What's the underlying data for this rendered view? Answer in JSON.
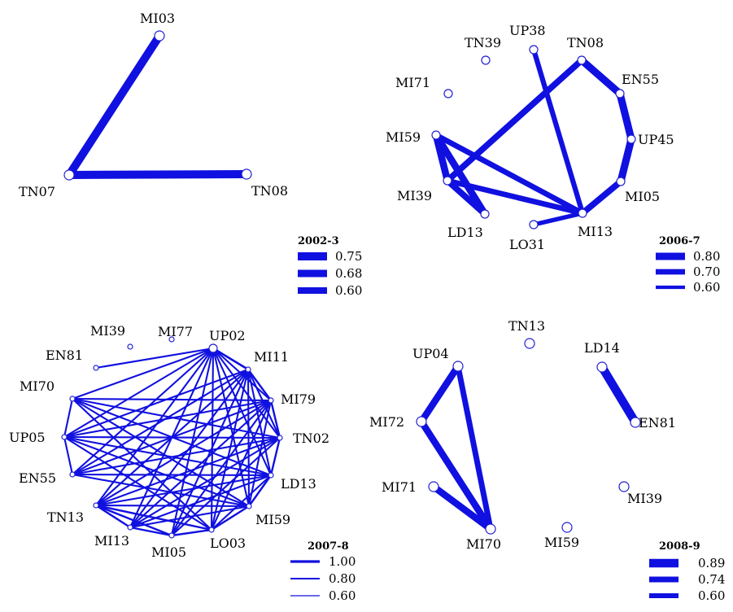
{
  "colors": {
    "edge": "#1010e0",
    "node_stroke": "#2020d0",
    "text": "#000000"
  },
  "panels": [
    {
      "title": "2002-3",
      "legend": [
        {
          "label": "0.75",
          "weight": 0.75
        },
        {
          "label": "0.68",
          "weight": 0.68
        },
        {
          "label": "0.60",
          "weight": 0.6
        }
      ],
      "nodes": [
        {
          "id": "MI03",
          "label": "MI03"
        },
        {
          "id": "TN07",
          "label": "TN07"
        },
        {
          "id": "TN08",
          "label": "TN08"
        }
      ],
      "edges": [
        {
          "source": "MI03",
          "target": "TN07",
          "weight": 0.75
        },
        {
          "source": "TN07",
          "target": "TN08",
          "weight": 0.75
        }
      ]
    },
    {
      "title": "2006-7",
      "legend": [
        {
          "label": "0.80",
          "weight": 0.8
        },
        {
          "label": "0.70",
          "weight": 0.7
        },
        {
          "label": "0.60",
          "weight": 0.6
        }
      ],
      "nodes": [
        {
          "id": "TN39",
          "label": "TN39"
        },
        {
          "id": "UP38",
          "label": "UP38"
        },
        {
          "id": "TN08",
          "label": "TN08"
        },
        {
          "id": "MI71",
          "label": "MI71"
        },
        {
          "id": "EN55",
          "label": "EN55"
        },
        {
          "id": "MI59",
          "label": "MI59"
        },
        {
          "id": "UP45",
          "label": "UP45"
        },
        {
          "id": "MI39",
          "label": "MI39"
        },
        {
          "id": "MI05",
          "label": "MI05"
        },
        {
          "id": "LD13",
          "label": "LD13"
        },
        {
          "id": "LO31",
          "label": "LO31"
        },
        {
          "id": "MI13",
          "label": "MI13"
        }
      ],
      "edges": [
        {
          "source": "TN08",
          "target": "EN55",
          "weight": 0.8
        },
        {
          "source": "EN55",
          "target": "UP45",
          "weight": 0.8
        },
        {
          "source": "UP45",
          "target": "MI05",
          "weight": 0.8
        },
        {
          "source": "MI05",
          "target": "MI13",
          "weight": 0.74
        },
        {
          "source": "UP38",
          "target": "MI13",
          "weight": 0.68
        },
        {
          "source": "TN08",
          "target": "MI39",
          "weight": 0.74
        },
        {
          "source": "MI59",
          "target": "MI39",
          "weight": 0.78
        },
        {
          "source": "MI59",
          "target": "LD13",
          "weight": 0.78
        },
        {
          "source": "MI39",
          "target": "LD13",
          "weight": 0.74
        },
        {
          "source": "MI59",
          "target": "MI13",
          "weight": 0.7
        },
        {
          "source": "MI39",
          "target": "MI13",
          "weight": 0.7
        },
        {
          "source": "LO31",
          "target": "MI13",
          "weight": 0.64
        }
      ]
    },
    {
      "title": "2007-8",
      "legend": [
        {
          "label": "1.00",
          "weight": 1.0
        },
        {
          "label": "0.80",
          "weight": 0.8
        },
        {
          "label": "0.60",
          "weight": 0.6
        }
      ],
      "nodes": [
        {
          "id": "MI39",
          "label": "MI39"
        },
        {
          "id": "MI77",
          "label": "MI77"
        },
        {
          "id": "UP02",
          "label": "UP02"
        },
        {
          "id": "EN81",
          "label": "EN81"
        },
        {
          "id": "MI11",
          "label": "MI11"
        },
        {
          "id": "MI70",
          "label": "MI70"
        },
        {
          "id": "MI79",
          "label": "MI79"
        },
        {
          "id": "UP05",
          "label": "UP05"
        },
        {
          "id": "TN02",
          "label": "TN02"
        },
        {
          "id": "EN55",
          "label": "EN55"
        },
        {
          "id": "LD13",
          "label": "LD13"
        },
        {
          "id": "TN13",
          "label": "TN13"
        },
        {
          "id": "MI59",
          "label": "MI59"
        },
        {
          "id": "MI13",
          "label": "MI13"
        },
        {
          "id": "LO03",
          "label": "LO03"
        },
        {
          "id": "MI05",
          "label": "MI05"
        }
      ],
      "edges": [
        {
          "source": "MI70",
          "target": "UP05",
          "weight": 0.8
        },
        {
          "source": "UP05",
          "target": "EN55",
          "weight": 0.8
        },
        {
          "source": "UP02",
          "target": "MI11",
          "weight": 0.9
        },
        {
          "source": "MI11",
          "target": "MI79",
          "weight": 0.85
        },
        {
          "source": "MI79",
          "target": "TN02",
          "weight": 0.85
        },
        {
          "source": "TN02",
          "target": "LD13",
          "weight": 0.85
        },
        {
          "source": "LD13",
          "target": "MI59",
          "weight": 0.85
        },
        {
          "source": "MI59",
          "target": "LO03",
          "weight": 0.85
        },
        {
          "source": "LO03",
          "target": "MI05",
          "weight": 0.85
        },
        {
          "source": "MI05",
          "target": "MI13",
          "weight": 0.85
        },
        {
          "source": "MI13",
          "target": "TN13",
          "weight": 0.85
        },
        {
          "source": "TN13",
          "target": "MI05",
          "weight": 0.85
        },
        {
          "source": "TN13",
          "target": "LO03",
          "weight": 0.85
        },
        {
          "source": "TN13",
          "target": "MI59",
          "weight": 0.8
        },
        {
          "source": "MI13",
          "target": "MI59",
          "weight": 0.8
        },
        {
          "source": "UP02",
          "target": "EN81",
          "weight": 0.8
        },
        {
          "source": "UP02",
          "target": "MI70",
          "weight": 0.8
        },
        {
          "source": "UP02",
          "target": "UP05",
          "weight": 0.8
        },
        {
          "source": "UP02",
          "target": "EN55",
          "weight": 0.8
        },
        {
          "source": "UP02",
          "target": "TN13",
          "weight": 0.8
        },
        {
          "source": "UP02",
          "target": "MI13",
          "weight": 0.8
        },
        {
          "source": "UP02",
          "target": "MI05",
          "weight": 0.8
        },
        {
          "source": "UP02",
          "target": "LO03",
          "weight": 0.8
        },
        {
          "source": "UP02",
          "target": "MI59",
          "weight": 0.8
        },
        {
          "source": "UP02",
          "target": "LD13",
          "weight": 0.8
        },
        {
          "source": "UP02",
          "target": "TN02",
          "weight": 0.8
        },
        {
          "source": "UP02",
          "target": "MI79",
          "weight": 0.8
        },
        {
          "source": "MI70",
          "target": "MI79",
          "weight": 0.8
        },
        {
          "source": "MI70",
          "target": "TN02",
          "weight": 0.8
        },
        {
          "source": "MI70",
          "target": "LD13",
          "weight": 0.8
        },
        {
          "source": "MI70",
          "target": "MI59",
          "weight": 0.8
        },
        {
          "source": "MI70",
          "target": "LO03",
          "weight": 0.8
        },
        {
          "source": "UP05",
          "target": "MI11",
          "weight": 0.8
        },
        {
          "source": "UP05",
          "target": "MI79",
          "weight": 0.8
        },
        {
          "source": "UP05",
          "target": "TN02",
          "weight": 0.8
        },
        {
          "source": "UP05",
          "target": "LD13",
          "weight": 0.8
        },
        {
          "source": "UP05",
          "target": "MI59",
          "weight": 0.8
        },
        {
          "source": "UP05",
          "target": "LO03",
          "weight": 0.8
        },
        {
          "source": "EN55",
          "target": "MI11",
          "weight": 0.8
        },
        {
          "source": "EN55",
          "target": "MI79",
          "weight": 0.8
        },
        {
          "source": "EN55",
          "target": "TN02",
          "weight": 0.8
        },
        {
          "source": "EN55",
          "target": "LD13",
          "weight": 0.8
        },
        {
          "source": "EN55",
          "target": "MI59",
          "weight": 0.8
        },
        {
          "source": "TN13",
          "target": "MI11",
          "weight": 0.8
        },
        {
          "source": "TN13",
          "target": "MI79",
          "weight": 0.8
        },
        {
          "source": "TN13",
          "target": "TN02",
          "weight": 0.8
        },
        {
          "source": "TN13",
          "target": "LD13",
          "weight": 0.8
        },
        {
          "source": "MI13",
          "target": "MI11",
          "weight": 0.8
        },
        {
          "source": "MI13",
          "target": "MI79",
          "weight": 0.8
        },
        {
          "source": "MI13",
          "target": "TN02",
          "weight": 0.8
        },
        {
          "source": "MI13",
          "target": "LD13",
          "weight": 0.8
        },
        {
          "source": "MI05",
          "target": "MI11",
          "weight": 0.8
        },
        {
          "source": "MI05",
          "target": "MI79",
          "weight": 0.8
        },
        {
          "source": "MI05",
          "target": "TN02",
          "weight": 0.8
        },
        {
          "source": "LO03",
          "target": "MI11",
          "weight": 0.8
        },
        {
          "source": "LO03",
          "target": "MI79",
          "weight": 0.8
        },
        {
          "source": "LO03",
          "target": "LD13",
          "weight": 0.8
        },
        {
          "source": "MI59",
          "target": "MI11",
          "weight": 0.8
        },
        {
          "source": "MI59",
          "target": "MI79",
          "weight": 0.8
        },
        {
          "source": "LD13",
          "target": "MI11",
          "weight": 0.8
        },
        {
          "source": "MI11",
          "target": "TN02",
          "weight": 0.8
        }
      ]
    },
    {
      "title": "2008-9",
      "legend": [
        {
          "label": "0.89",
          "weight": 0.89
        },
        {
          "label": "0.74",
          "weight": 0.74
        },
        {
          "label": "0.60",
          "weight": 0.6
        }
      ],
      "nodes": [
        {
          "id": "TN13",
          "label": "TN13"
        },
        {
          "id": "UP04",
          "label": "UP04"
        },
        {
          "id": "LD14",
          "label": "LD14"
        },
        {
          "id": "MI72",
          "label": "MI72"
        },
        {
          "id": "EN81",
          "label": "EN81"
        },
        {
          "id": "MI71",
          "label": "MI71"
        },
        {
          "id": "MI39",
          "label": "MI39"
        },
        {
          "id": "MI70",
          "label": "MI70"
        },
        {
          "id": "MI59",
          "label": "MI59"
        }
      ],
      "edges": [
        {
          "source": "LD14",
          "target": "EN81",
          "weight": 0.89
        },
        {
          "source": "UP04",
          "target": "MI72",
          "weight": 0.8
        },
        {
          "source": "UP04",
          "target": "MI70",
          "weight": 0.74
        },
        {
          "source": "MI72",
          "target": "MI70",
          "weight": 0.8
        },
        {
          "source": "MI71",
          "target": "MI70",
          "weight": 0.8
        }
      ]
    }
  ]
}
